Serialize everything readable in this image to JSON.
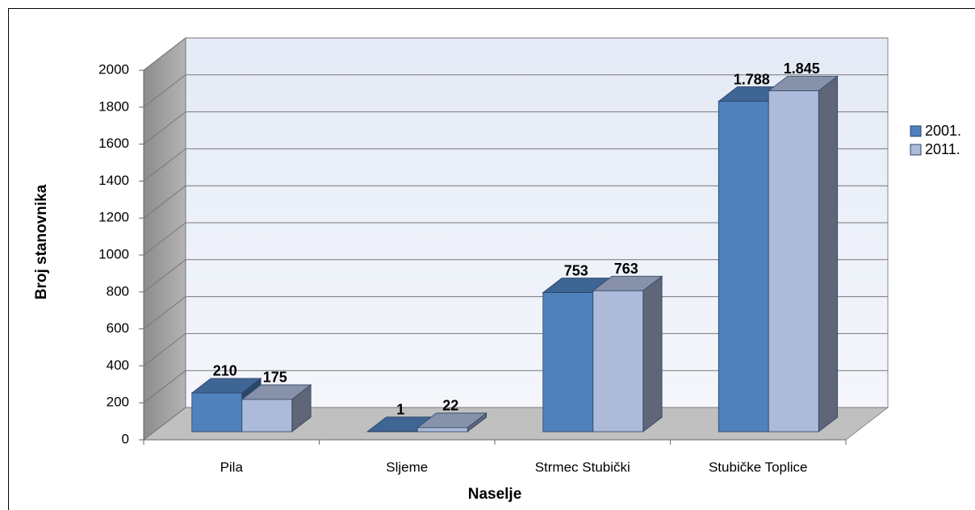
{
  "chart_data": {
    "type": "bar3d",
    "x_label": "Naselje",
    "y_label": "Broj stanovnika",
    "categories": [
      "Pila",
      "Sljeme",
      "Strmec Stubički",
      "Stubičke Toplice"
    ],
    "series": [
      {
        "name": "2001.",
        "color": "#4f81bd",
        "values": [
          210,
          1,
          753,
          1788
        ],
        "value_labels": [
          "210",
          "1",
          "753",
          "1.788"
        ]
      },
      {
        "name": "2011.",
        "color": "#adbad9",
        "values": [
          175,
          22,
          763,
          1845
        ],
        "value_labels": [
          "175",
          "22",
          "763",
          "1.845"
        ]
      }
    ],
    "ylim": [
      0,
      2000
    ],
    "yticks": [
      0,
      200,
      400,
      600,
      800,
      1000,
      1200,
      1400,
      1600,
      1800,
      2000
    ],
    "grid": true,
    "legend": "right"
  }
}
